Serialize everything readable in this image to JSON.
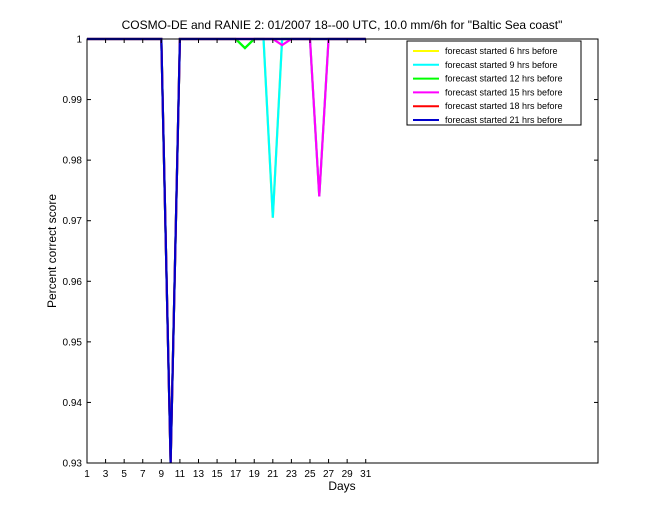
{
  "chart_data": {
    "type": "line",
    "title": "COSMO-DE and RANIE 2: 01/2007 18--00 UTC, 10.0 mm/6h for \"Baltic Sea coast\"",
    "xlabel": "Days",
    "ylabel": "Percent correct score",
    "xlim": [
      1,
      56
    ],
    "ylim": [
      0.93,
      1.0
    ],
    "xticks": [
      1,
      3,
      5,
      7,
      9,
      11,
      13,
      15,
      17,
      19,
      21,
      23,
      25,
      27,
      29,
      31
    ],
    "xtick_labels": [
      "1",
      "3",
      "5",
      "7",
      "9",
      "11",
      "13",
      "15",
      "17",
      "19",
      "21",
      "23",
      "25",
      "27",
      "29",
      "31"
    ],
    "yticks": [
      0.93,
      0.94,
      0.95,
      0.96,
      0.97,
      0.98,
      0.99,
      1.0
    ],
    "ytick_labels": [
      "0.93",
      "0.94",
      "0.95",
      "0.96",
      "0.97",
      "0.98",
      "0.99",
      "1"
    ],
    "grid": false,
    "legend_position": "top-right",
    "series": [
      {
        "name": "forecast started 6 hrs before",
        "color": "#ffff00",
        "x": [
          1,
          9,
          10,
          11,
          17,
          18,
          19,
          20,
          21,
          22,
          23,
          25,
          26,
          27,
          31
        ],
        "y": [
          1,
          1,
          0.93,
          1,
          1,
          0.9985,
          1,
          1,
          0.9705,
          1,
          1,
          1,
          0.974,
          1,
          1
        ]
      },
      {
        "name": "forecast started 9 hrs before",
        "color": "#00ffff",
        "x": [
          1,
          9,
          10,
          11,
          17,
          18,
          19,
          20,
          21,
          22,
          23,
          25,
          26,
          27,
          31
        ],
        "y": [
          1,
          1,
          0.93,
          1,
          1,
          0.9985,
          1,
          1,
          0.9705,
          1,
          1,
          1,
          0.974,
          1,
          1
        ]
      },
      {
        "name": "forecast started 12 hrs before",
        "color": "#00ff00",
        "x": [
          1,
          9,
          10,
          11,
          17,
          18,
          19,
          31
        ],
        "y": [
          1,
          1,
          0.93,
          1,
          1,
          0.9985,
          1,
          1
        ]
      },
      {
        "name": "forecast started 15 hrs before",
        "color": "#ff00ff",
        "x": [
          1,
          9,
          10,
          11,
          21,
          22,
          23,
          25,
          26,
          27,
          31
        ],
        "y": [
          1,
          1,
          0.93,
          1,
          1,
          0.999,
          1,
          1,
          0.974,
          1,
          1
        ]
      },
      {
        "name": "forecast started 18 hrs before",
        "color": "#ff0000",
        "x": [
          1,
          9,
          10,
          11,
          31
        ],
        "y": [
          1,
          1,
          0.93,
          1,
          1
        ]
      },
      {
        "name": "forecast started 21 hrs before",
        "color": "#0000cc",
        "x": [
          1,
          9,
          10,
          11,
          31
        ],
        "y": [
          1,
          1,
          0.93,
          1,
          1
        ]
      }
    ]
  }
}
